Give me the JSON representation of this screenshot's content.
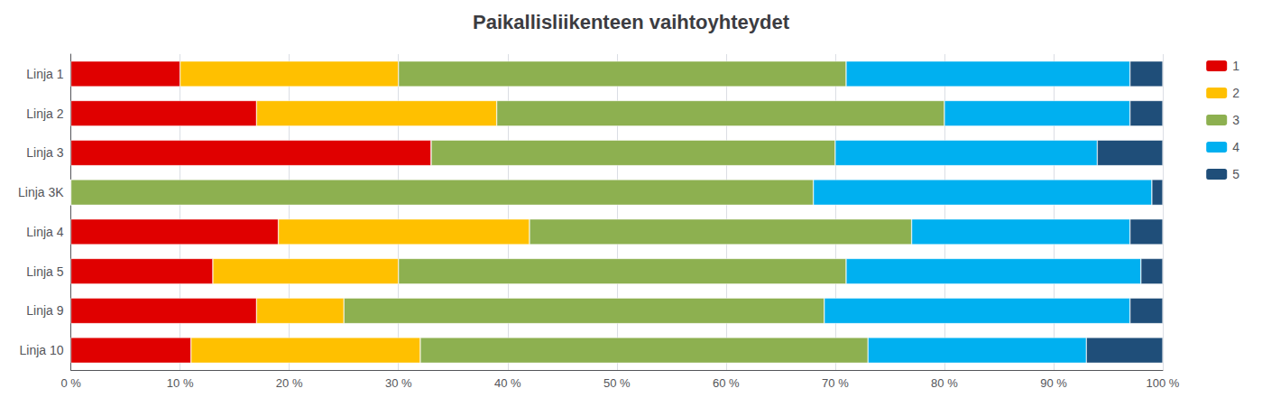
{
  "chart_data": {
    "type": "bar",
    "orientation": "horizontal",
    "stacked": true,
    "title": "Paikallisliikenteen vaihtoyhteydet",
    "categories": [
      "Linja 1",
      "Linja 2",
      "Linja 3",
      "Linja 3K",
      "Linja 4",
      "Linja 5",
      "Linja 9",
      "Linja 10"
    ],
    "series": [
      {
        "name": "1",
        "color": "#e00000",
        "values": [
          10,
          17,
          33,
          0,
          19,
          13,
          17,
          11
        ]
      },
      {
        "name": "2",
        "color": "#ffc000",
        "values": [
          20,
          22,
          0,
          0,
          23,
          17,
          8,
          21
        ]
      },
      {
        "name": "3",
        "color": "#8db050",
        "values": [
          41,
          41,
          37,
          68,
          35,
          41,
          44,
          41
        ]
      },
      {
        "name": "4",
        "color": "#00b0f0",
        "values": [
          26,
          17,
          24,
          31,
          20,
          27,
          28,
          20
        ]
      },
      {
        "name": "5",
        "color": "#1f4e79",
        "values": [
          3,
          3,
          6,
          1,
          3,
          2,
          3,
          7
        ]
      }
    ],
    "xlim": [
      0,
      100
    ],
    "xticks": [
      {
        "value": 0,
        "label": "0 %"
      },
      {
        "value": 10,
        "label": "10 %"
      },
      {
        "value": 20,
        "label": "20 %"
      },
      {
        "value": 30,
        "label": "30 %"
      },
      {
        "value": 40,
        "label": "40 %"
      },
      {
        "value": 50,
        "label": "50 %"
      },
      {
        "value": 60,
        "label": "60 %"
      },
      {
        "value": 70,
        "label": "70 %"
      },
      {
        "value": 80,
        "label": "80 %"
      },
      {
        "value": 90,
        "label": "90 %"
      },
      {
        "value": 100,
        "label": "100 %"
      }
    ],
    "grid": true,
    "legend": "upper right"
  }
}
